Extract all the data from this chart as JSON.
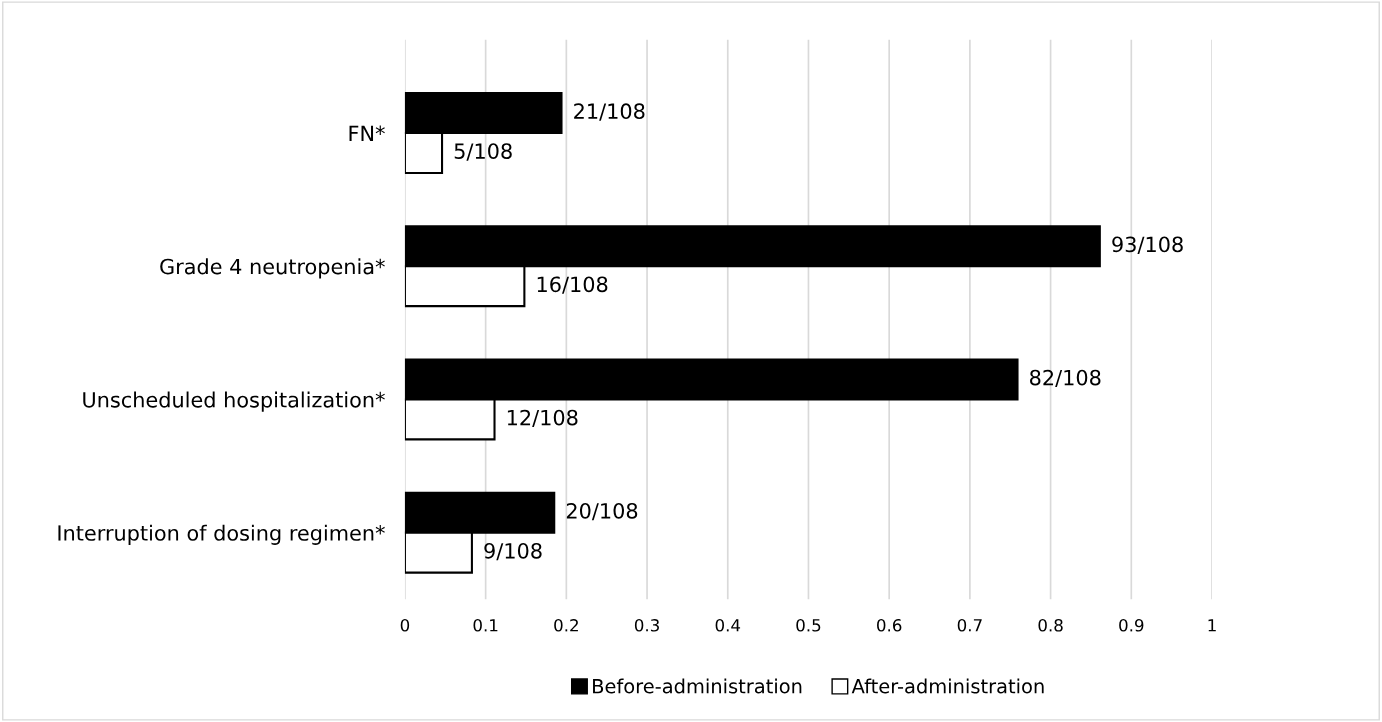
{
  "chart_data": {
    "type": "bar",
    "orientation": "horizontal",
    "categories": [
      "FN*",
      "Grade 4 neutropenia*",
      "Unscheduled hospitalization*",
      "Interruption of dosing regimen*"
    ],
    "series": [
      {
        "name": "Before-administration",
        "color": "#000000",
        "values": [
          0.194,
          0.861,
          0.759,
          0.185
        ],
        "value_labels": [
          "21/108",
          "93/108",
          "82/108",
          "20/108"
        ]
      },
      {
        "name": "After-administration",
        "color": "#ffffff",
        "values": [
          0.046,
          0.148,
          0.111,
          0.083
        ],
        "value_labels": [
          "5/108",
          "16/108",
          "12/108",
          "9/108"
        ]
      }
    ],
    "xlim": [
      0,
      1
    ],
    "xticks": [
      0,
      0.1,
      0.2,
      0.3,
      0.4,
      0.5,
      0.6,
      0.7,
      0.8,
      0.9,
      1
    ],
    "grid": "x",
    "legend": "bottom"
  }
}
